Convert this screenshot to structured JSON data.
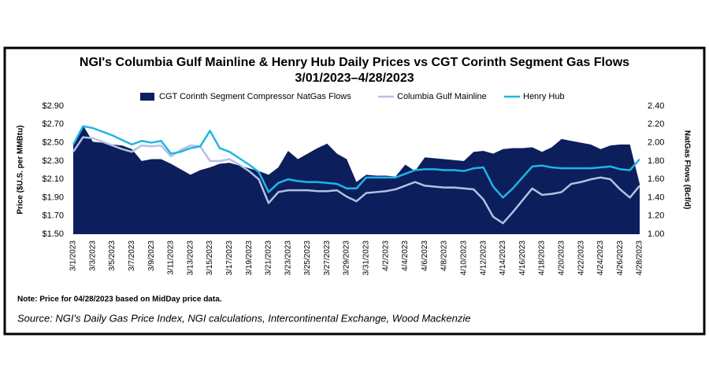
{
  "chart_data": {
    "type": "line",
    "title": "NGI's Columbia Gulf Mainline & Henry Hub Daily Prices vs CGT Corinth Segment Gas Flows",
    "subtitle": "3/01/2023–4/28/2023",
    "y_label": "Price ($U.S. per MMBtu)",
    "y2_label": "NatGas Flows (Bcf/d)",
    "note": "Note: Price for 04/28/2023 based on MidDay price data.",
    "source": "Source: NGI's Daily Gas Price Index, NGI calculations, Intercontinental Exchange, Wood Mackenzie",
    "categories": [
      "3/1/2023",
      null,
      "3/3/2023",
      null,
      "3/5/2023",
      null,
      "3/7/2023",
      null,
      "3/9/2023",
      null,
      "3/11/2023",
      null,
      "3/13/2023",
      null,
      "3/15/2023",
      null,
      "3/17/2023",
      null,
      "3/19/2023",
      null,
      "3/21/2023",
      null,
      "3/23/2023",
      null,
      "3/25/2023",
      null,
      "3/27/2023",
      null,
      "3/29/2023",
      null,
      "3/31/2023",
      null,
      "4/2/2023",
      null,
      "4/4/2023",
      null,
      "4/6/2023",
      null,
      "4/8/2023",
      null,
      "4/10/2023",
      null,
      "4/12/2023",
      null,
      "4/14/2023",
      null,
      "4/16/2023",
      null,
      "4/18/2023",
      null,
      "4/20/2023",
      null,
      "4/22/2023",
      null,
      "4/24/2023",
      null,
      "4/26/2023",
      null,
      "4/28/2023"
    ],
    "series": [
      {
        "name": "CGT Corinth Segment Compressor NatGas Flows",
        "type": "area",
        "axis": "y2",
        "color": "#0c1e5b",
        "values": [
          2.0,
          2.19,
          2.01,
          2.0,
          1.98,
          1.97,
          1.93,
          1.8,
          1.82,
          1.82,
          1.77,
          1.71,
          1.65,
          1.7,
          1.73,
          1.77,
          1.78,
          1.75,
          1.72,
          1.69,
          1.65,
          1.73,
          1.91,
          1.82,
          1.88,
          1.94,
          1.99,
          1.88,
          1.82,
          1.57,
          1.65,
          1.64,
          1.64,
          1.63,
          1.76,
          1.69,
          1.84,
          1.83,
          1.82,
          1.81,
          1.8,
          1.9,
          1.91,
          1.88,
          1.93,
          1.94,
          1.94,
          1.95,
          1.9,
          1.95,
          2.04,
          2.02,
          2.0,
          1.98,
          1.93,
          1.97,
          1.98,
          1.98,
          1.55
        ]
      },
      {
        "name": "Columbia Gulf Mainline",
        "type": "line",
        "color": "#b4c0e4",
        "values": [
          2.4,
          2.56,
          2.55,
          2.51,
          2.47,
          2.43,
          2.4,
          2.47,
          2.46,
          2.47,
          2.35,
          2.42,
          2.47,
          2.46,
          2.3,
          2.3,
          2.32,
          2.26,
          2.19,
          2.1,
          1.84,
          1.96,
          1.98,
          1.98,
          1.98,
          1.97,
          1.97,
          1.98,
          1.91,
          1.86,
          1.95,
          1.96,
          1.97,
          1.99,
          2.03,
          2.07,
          2.03,
          2.02,
          2.01,
          2.01,
          2.0,
          1.99,
          1.88,
          1.69,
          1.62,
          1.74,
          1.87,
          2.0,
          1.93,
          1.94,
          1.96,
          2.05,
          2.07,
          2.1,
          2.12,
          2.1,
          1.99,
          1.9,
          2.03
        ]
      },
      {
        "name": "Henry Hub",
        "type": "line",
        "color": "#1fb5e8",
        "values": [
          2.48,
          2.68,
          2.66,
          2.62,
          2.58,
          2.53,
          2.48,
          2.52,
          2.5,
          2.52,
          2.38,
          2.4,
          2.44,
          2.46,
          2.63,
          2.44,
          2.4,
          2.33,
          2.26,
          2.18,
          1.96,
          2.06,
          2.1,
          2.08,
          2.07,
          2.07,
          2.06,
          2.05,
          2.0,
          2.0,
          2.12,
          2.12,
          2.12,
          2.12,
          2.16,
          2.2,
          2.21,
          2.21,
          2.2,
          2.2,
          2.19,
          2.22,
          2.23,
          2.02,
          1.9,
          2.0,
          2.12,
          2.24,
          2.25,
          2.23,
          2.22,
          2.22,
          2.22,
          2.22,
          2.23,
          2.24,
          2.21,
          2.2,
          2.32
        ]
      }
    ],
    "ylim": [
      1.5,
      2.9
    ],
    "yticks": [
      {
        "value": 1.5,
        "label": "$1.50"
      },
      {
        "value": 1.7,
        "label": "$1.70"
      },
      {
        "value": 1.9,
        "label": "$1.90"
      },
      {
        "value": 2.1,
        "label": "$2.10"
      },
      {
        "value": 2.3,
        "label": "$2.30"
      },
      {
        "value": 2.5,
        "label": "$2.50"
      },
      {
        "value": 2.7,
        "label": "$2.70"
      },
      {
        "value": 2.9,
        "label": "$2.90"
      }
    ],
    "y2lim": [
      1.0,
      2.4
    ],
    "y2ticks": [
      {
        "value": 1.0,
        "label": "1.00"
      },
      {
        "value": 1.2,
        "label": "1.20"
      },
      {
        "value": 1.4,
        "label": "1.40"
      },
      {
        "value": 1.6,
        "label": "1.60"
      },
      {
        "value": 1.8,
        "label": "1.80"
      },
      {
        "value": 2.0,
        "label": "2.00"
      },
      {
        "value": 2.2,
        "label": "2.20"
      },
      {
        "value": 2.4,
        "label": "2.40"
      }
    ],
    "grid": false,
    "legend": "top"
  }
}
